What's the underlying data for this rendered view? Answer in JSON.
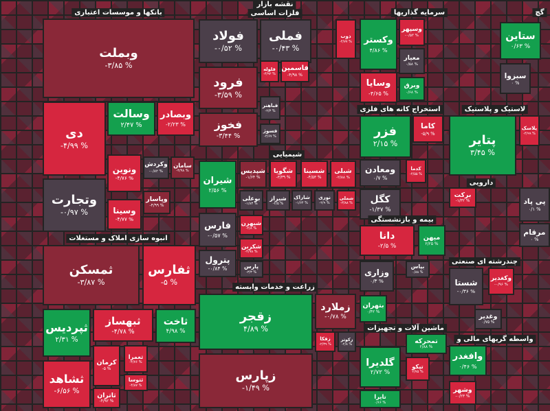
{
  "header": {
    "title": "نقشه بازار"
  },
  "sectors": [
    {
      "title": "بانکها و موسسات اعتباری",
      "tiles": [
        {
          "name": "وبملت",
          "change": "-۳/۸۵ %"
        },
        {
          "name": "دی",
          "change": "-۴/۹۹ %"
        },
        {
          "name": "وسالت",
          "change": "۲/۴۷ %"
        },
        {
          "name": "وبصادر",
          "change": "-۲/۲۳ %"
        },
        {
          "name": "ونوین",
          "change": "-۴/۷۶ %"
        },
        {
          "name": "وکردش",
          "change": "-۰/۸۲ %"
        },
        {
          "name": "سامان",
          "change": "-۴/۹۸ %"
        },
        {
          "name": "وتجارت",
          "change": "-۰/۹۷ %"
        },
        {
          "name": "وپاسار",
          "change": "-۴/۹۹ %"
        },
        {
          "name": "وسینا",
          "change": "-۴/۷۷ %"
        }
      ]
    },
    {
      "title": "انبوه سازی املاک و مستغلات",
      "tiles": [
        {
          "name": "ثمسکن",
          "change": "-۳/۸۷ %"
        },
        {
          "name": "ثفارس",
          "change": "-۵ %"
        },
        {
          "name": "ثپردیس",
          "change": "۲/۳۱ %"
        },
        {
          "name": "ثبهساز",
          "change": "-۴/۷۸ %"
        },
        {
          "name": "ثاخت",
          "change": "۴/۹۸ %"
        },
        {
          "name": "کرمان",
          "change": "-۵ %"
        },
        {
          "name": "ثعمرا",
          "change": "-۴/۷۶ %"
        },
        {
          "name": "ثتوسا",
          "change": "-۴/۸۷ %"
        },
        {
          "name": "ثشاهد",
          "change": "-۶/۵۶ %"
        },
        {
          "name": "ثاتران",
          "change": "-۴/۹۲ %"
        }
      ]
    },
    {
      "title": "فلزات اساسی",
      "tiles": [
        {
          "name": "فولاد",
          "change": "-۰/۵۲ %"
        },
        {
          "name": "فملی",
          "change": "-۰/۴۳ %"
        },
        {
          "name": "ذوب",
          "change": "-۴/۷۷ %"
        },
        {
          "name": "فرود",
          "change": "-۳/۵۹ %"
        },
        {
          "name": "فلوله",
          "change": "-۴/۹۲ %"
        },
        {
          "name": "فاسمین",
          "change": "-۴/۹۸ %"
        },
        {
          "name": "فباهنر",
          "change": "-۲/۳ %"
        },
        {
          "name": "فخوز",
          "change": "-۳/۴۴ %"
        },
        {
          "name": "فسوژ",
          "change": "-۴/۶۷ %"
        }
      ]
    },
    {
      "title": "شیمیایی",
      "tiles": [
        {
          "name": "شیران",
          "change": "۲/۵۶ %"
        },
        {
          "name": "شپدیس",
          "change": "-۱/۶۴ %"
        },
        {
          "name": "شگویا",
          "change": "-۳/۳۹ %"
        },
        {
          "name": "شسینا",
          "change": "-۴/۵۳ %"
        },
        {
          "name": "شبلی",
          "change": "-۲/۸۸ %"
        },
        {
          "name": "بوعلی",
          "change": "-۱/۸۳ %"
        },
        {
          "name": "شیراز",
          "change": "-۲/۵ %"
        },
        {
          "name": "شاراک",
          "change": "-۱/۶۴ %"
        },
        {
          "name": "نوری",
          "change": "-۲/۹ %"
        },
        {
          "name": "شملی",
          "change": "-۳/۸۸ %"
        },
        {
          "name": "فارس",
          "change": "-۰/۵۷ %"
        },
        {
          "name": "شبهرن",
          "change": "-۴/۸ %"
        },
        {
          "name": "شکربن",
          "change": "-۴/۹۸ %"
        },
        {
          "name": "پترول",
          "change": "-۰/۸۴ %"
        },
        {
          "name": "پارس",
          "change": "-۳/۳ %"
        }
      ]
    },
    {
      "title": "زراعت و خدمات وابسته",
      "tiles": [
        {
          "name": "زقجر",
          "change": "۴/۸۹ %"
        },
        {
          "name": "زملارد",
          "change": "-۰/۷۸ %"
        },
        {
          "name": "زفکا",
          "change": "-۲/۳۹ %"
        },
        {
          "name": "زکوثر",
          "change": "-۲/۸ %"
        },
        {
          "name": "زپارس",
          "change": "-۱/۴۹ %"
        }
      ]
    },
    {
      "title": "سرمایه گذاریها",
      "tiles": [
        {
          "name": "وکستر",
          "change": "۴/۸۶ %"
        },
        {
          "name": "وسپهر",
          "change": "-۰/۵۳ %"
        },
        {
          "name": "معیار",
          "change": "۰/۵۸ %"
        },
        {
          "name": "وسایا",
          "change": "-۴/۶۵ %"
        },
        {
          "name": "وبرق",
          "change": "۰/۶۸ %"
        }
      ]
    },
    {
      "title": "استخراج کانه های فلزی",
      "tiles": [
        {
          "name": "فزر",
          "change": "۲/۱۵ %"
        },
        {
          "name": "کاما",
          "change": "-۵/۹ %"
        },
        {
          "name": "کدما",
          "change": "-۴/۵۵ %"
        },
        {
          "name": "ومعادن",
          "change": "۰/۷ %"
        },
        {
          "name": "کگل",
          "change": "-۱/۳۷ %"
        }
      ]
    },
    {
      "title": "بیمه و بازنشستگی",
      "tiles": [
        {
          "name": "دانا",
          "change": "-۲/۵ %"
        },
        {
          "name": "میهن",
          "change": "۲/۲۵ %"
        },
        {
          "name": "وزاری",
          "change": "۰/۳ %"
        },
        {
          "name": "بپاس",
          "change": "۰/۸۸ %"
        },
        {
          "name": "بتهران",
          "change": "۰/۴۲ %"
        }
      ]
    },
    {
      "title": "ماشین آلات و تجهیزات",
      "tiles": [
        {
          "name": "تمحرکه",
          "change": "۲/۸۸ %"
        },
        {
          "name": "گلدیرا",
          "change": "۲/۷۲ %"
        },
        {
          "name": "تپکو",
          "change": "۲/۷۵ %"
        },
        {
          "name": "تایرا",
          "change": "۰/۶۶ %"
        }
      ]
    },
    {
      "title": "لاستیک و پلاستیک",
      "tiles": [
        {
          "name": "پتایر",
          "change": "۳/۴۵ %"
        },
        {
          "name": "پلاسک",
          "change": "-۴/۹۹ %"
        }
      ]
    },
    {
      "title": "دارویی",
      "tiles": [
        {
          "name": "برکت",
          "change": "-۱/۳۲ %"
        },
        {
          "name": "پی پاد",
          "change": "۰/۱ %"
        },
        {
          "name": "مرقام",
          "change": "۰ %"
        }
      ]
    },
    {
      "title": "چندرشته ای صنعتی",
      "tiles": [
        {
          "name": "شستا",
          "change": "-۰/۳۶ %"
        },
        {
          "name": "وکغدیر",
          "change": "-۰/۹۶ %"
        },
        {
          "name": "وغدیر",
          "change": "۰/۷۵ %"
        }
      ]
    },
    {
      "title": "واسطه گریهای مالی و",
      "tiles": [
        {
          "name": "وافغدر",
          "change": "۰/۴۶ %"
        },
        {
          "name": "وشهر",
          "change": "-۰/۲۳ %"
        }
      ]
    },
    {
      "title": "گچ",
      "tiles": [
        {
          "name": "ستاین",
          "change": "۰/۶۳ %"
        },
        {
          "name": "سبزوا",
          "change": "۰ %"
        }
      ]
    }
  ]
}
